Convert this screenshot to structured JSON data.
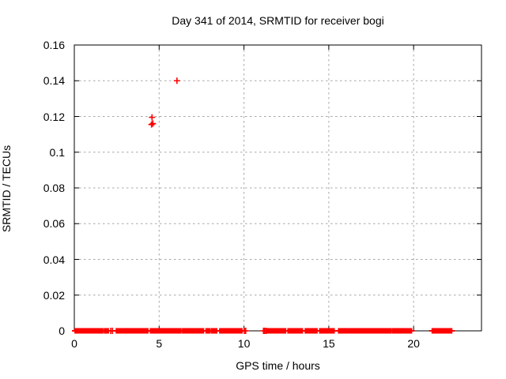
{
  "chart_data": {
    "type": "scatter",
    "title": "Day 341 of 2014, SRMTID for receiver bogi",
    "xlabel": "GPS time / hours",
    "ylabel": "SRMTID / TECUs",
    "xlim": [
      0,
      24
    ],
    "ylim": [
      0,
      0.16
    ],
    "x_ticks": [
      {
        "value": 0,
        "label": "0"
      },
      {
        "value": 5,
        "label": "5"
      },
      {
        "value": 10,
        "label": "10"
      },
      {
        "value": 15,
        "label": "15"
      },
      {
        "value": 20,
        "label": "20"
      }
    ],
    "y_ticks": [
      {
        "value": 0.0,
        "label": "0"
      },
      {
        "value": 0.02,
        "label": "0.02"
      },
      {
        "value": 0.04,
        "label": "0.04"
      },
      {
        "value": 0.06,
        "label": "0.06"
      },
      {
        "value": 0.08,
        "label": "0.08"
      },
      {
        "value": 0.1,
        "label": "0.1"
      },
      {
        "value": 0.12,
        "label": "0.12"
      },
      {
        "value": 0.14,
        "label": "0.14"
      },
      {
        "value": 0.16,
        "label": "0.16"
      }
    ],
    "grid": true,
    "legend": "none",
    "marker": "plus",
    "series_color": "#ff0000",
    "grid_color": "#a6a6a6",
    "border_color": "#000000",
    "outlier_points": [
      [
        4.55,
        0.1155
      ],
      [
        4.63,
        0.116
      ],
      [
        4.58,
        0.1195
      ],
      [
        6.05,
        0.14
      ]
    ],
    "sparse_zero_points_x": [
      2.15,
      2.25,
      10.02,
      10.1,
      11.15,
      11.22,
      11.3
    ],
    "zero_band_segments": [
      [
        0.05,
        0.17
      ],
      [
        0.21,
        0.45
      ],
      [
        0.52,
        0.7
      ],
      [
        0.78,
        0.97
      ],
      [
        1.05,
        1.38
      ],
      [
        1.42,
        1.67
      ],
      [
        1.78,
        2.0
      ],
      [
        2.48,
        2.62
      ],
      [
        2.69,
        2.88
      ],
      [
        2.93,
        3.1
      ],
      [
        3.14,
        3.47
      ],
      [
        3.55,
        3.86
      ],
      [
        3.91,
        4.33
      ],
      [
        4.49,
        4.8
      ],
      [
        4.84,
        6.28
      ],
      [
        6.39,
        6.52
      ],
      [
        6.58,
        6.9
      ],
      [
        6.94,
        7.61
      ],
      [
        7.77,
        8.0
      ],
      [
        8.11,
        8.39
      ],
      [
        8.58,
        8.7
      ],
      [
        8.78,
        9.02
      ],
      [
        9.09,
        9.4
      ],
      [
        9.44,
        9.88
      ],
      [
        11.35,
        11.75
      ],
      [
        11.8,
        12.45
      ],
      [
        12.6,
        12.9
      ],
      [
        12.95,
        13.44
      ],
      [
        13.62,
        14.0
      ],
      [
        14.05,
        14.3
      ],
      [
        14.47,
        14.8
      ],
      [
        14.85,
        15.31
      ],
      [
        15.58,
        15.9
      ],
      [
        15.95,
        16.32
      ],
      [
        16.4,
        16.75
      ],
      [
        16.8,
        17.08
      ],
      [
        17.15,
        17.55
      ],
      [
        17.6,
        18.08
      ],
      [
        18.13,
        18.25
      ],
      [
        18.32,
        18.45
      ],
      [
        18.52,
        18.65
      ],
      [
        18.75,
        19.1
      ],
      [
        19.17,
        19.87
      ],
      [
        21.1,
        22.24
      ]
    ]
  }
}
